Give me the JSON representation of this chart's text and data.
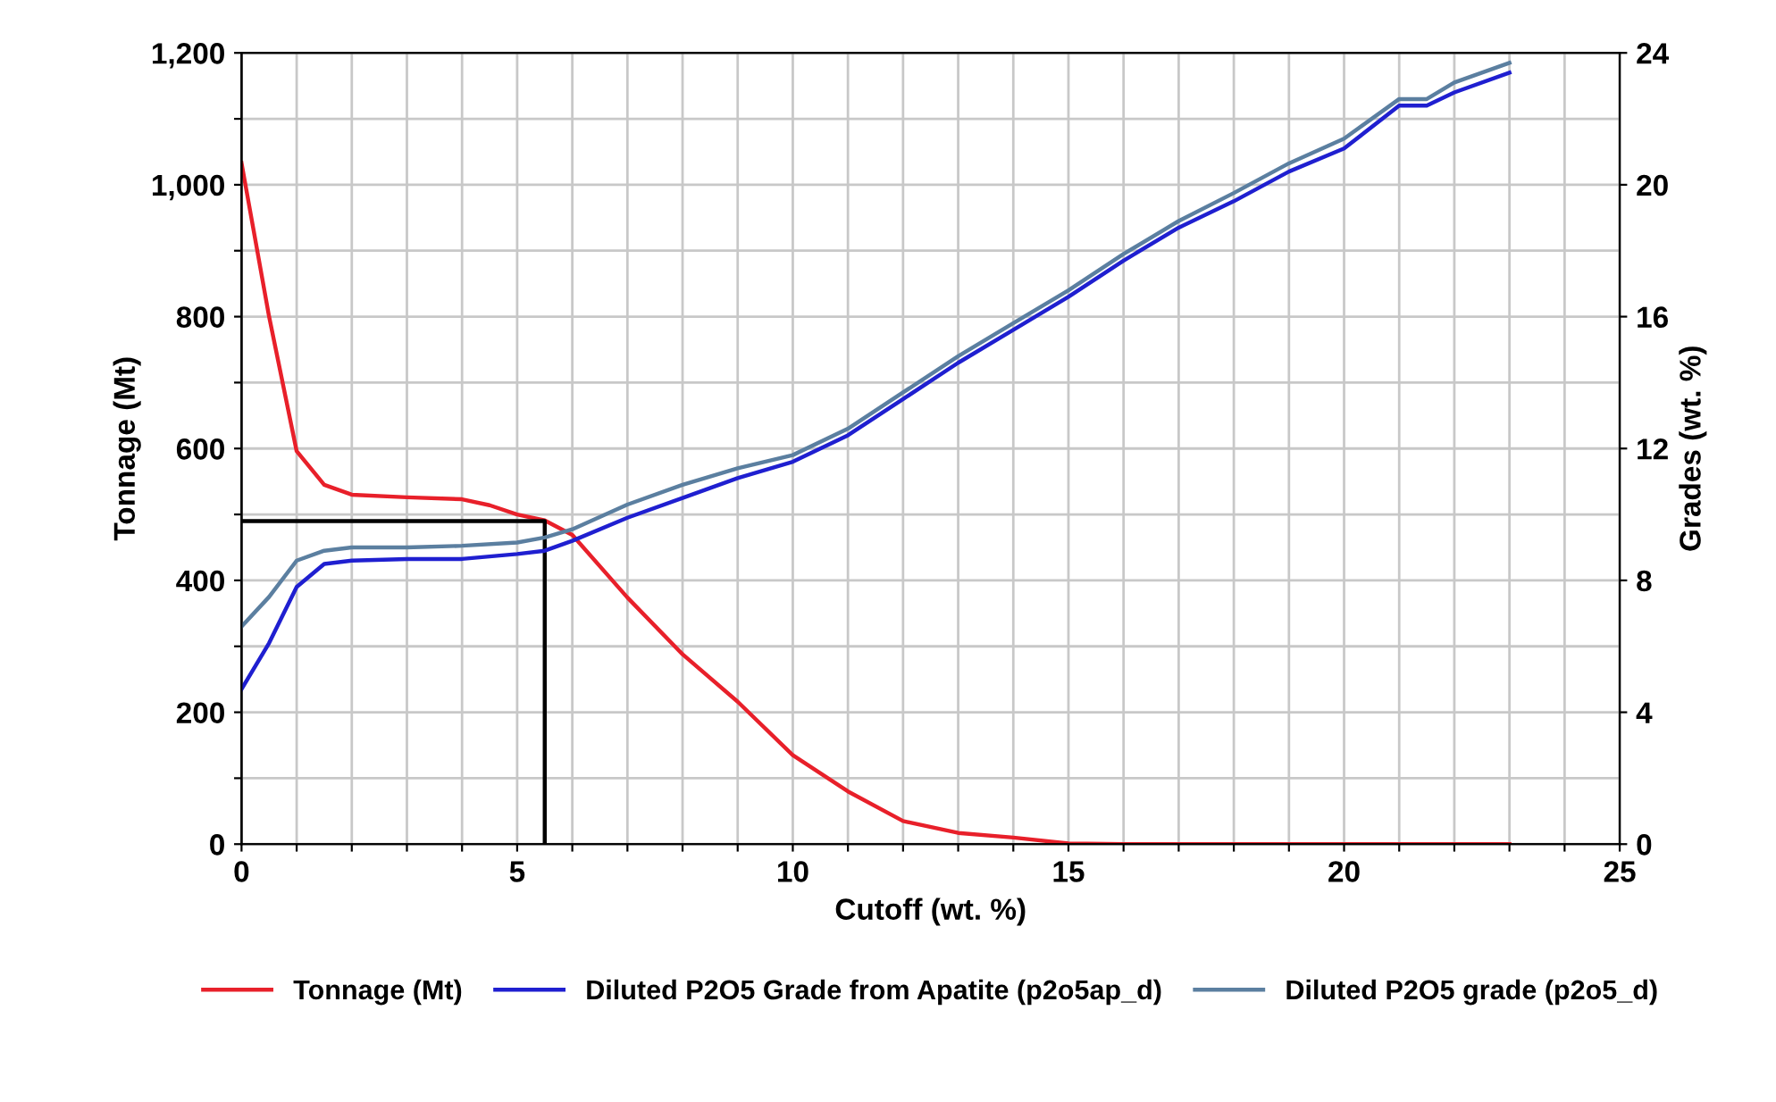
{
  "chart_data": {
    "type": "line",
    "xlabel": "Cutoff (wt. %)",
    "ylabel": "Tonnage (Mt)",
    "y2label": "Grades (wt. %)",
    "xlim": [
      0,
      25
    ],
    "ylim": [
      0,
      1200
    ],
    "y2lim": [
      0,
      24
    ],
    "xticks": [
      0,
      {
        "value": 1,
        "label": null
      },
      {
        "value": 2,
        "label": null
      },
      {
        "value": 3,
        "label": null
      },
      {
        "value": 4,
        "label": null
      },
      5,
      {
        "value": 6,
        "label": null
      },
      {
        "value": 7,
        "label": null
      },
      {
        "value": 8,
        "label": null
      },
      {
        "value": 9,
        "label": null
      },
      10,
      {
        "value": 11,
        "label": null
      },
      {
        "value": 12,
        "label": null
      },
      {
        "value": 13,
        "label": null
      },
      {
        "value": 14,
        "label": null
      },
      15,
      {
        "value": 16,
        "label": null
      },
      {
        "value": 17,
        "label": null
      },
      {
        "value": 18,
        "label": null
      },
      {
        "value": 19,
        "label": null
      },
      20,
      {
        "value": 21,
        "label": null
      },
      {
        "value": 22,
        "label": null
      },
      {
        "value": 23,
        "label": null
      },
      {
        "value": 24,
        "label": null
      },
      25
    ],
    "yticks": [
      {
        "value": 0,
        "label": "0"
      },
      {
        "value": 100,
        "label": null
      },
      {
        "value": 200,
        "label": "200"
      },
      {
        "value": 300,
        "label": null
      },
      {
        "value": 400,
        "label": "400"
      },
      {
        "value": 500,
        "label": null
      },
      {
        "value": 600,
        "label": "600"
      },
      {
        "value": 700,
        "label": null
      },
      {
        "value": 800,
        "label": "800"
      },
      {
        "value": 900,
        "label": null
      },
      {
        "value": 1000,
        "label": "1,000"
      },
      {
        "value": 1100,
        "label": null
      },
      {
        "value": 1200,
        "label": "1,200"
      }
    ],
    "y2ticks": [
      0,
      4,
      8,
      12,
      16,
      20,
      24
    ],
    "grid": true,
    "legend": "bottom",
    "marker": "none",
    "line_style": "solid",
    "series": [
      {
        "name": "Tonnage (Mt)",
        "color": "#e8202a",
        "x": [
          0,
          0.5,
          1,
          1.5,
          2,
          3,
          4,
          4.5,
          5,
          5.5,
          6,
          7,
          8,
          9,
          10,
          11,
          12,
          13,
          14,
          15,
          16,
          17,
          18,
          19,
          20,
          21,
          22,
          23
        ],
        "values": [
          1033,
          800,
          596,
          545,
          530,
          526,
          523,
          514,
          500,
          491,
          469,
          374,
          288,
          216,
          135,
          80,
          35,
          17,
          10,
          1,
          0,
          0,
          0,
          0,
          0,
          0,
          0,
          0
        ]
      },
      {
        "name": "Diluted P2O5 Grade from Apatite (p2o5ap_d)",
        "color": "#1f1fd0",
        "axis": "y2",
        "x": [
          0,
          0.5,
          1,
          1.5,
          2,
          3,
          4,
          5,
          5.5,
          6,
          7,
          8,
          9,
          10,
          11,
          12,
          13,
          14,
          15,
          16,
          17,
          18,
          19,
          20,
          21,
          21.5,
          22,
          23
        ],
        "values": [
          4.7,
          6.1,
          7.8,
          8.5,
          8.6,
          8.65,
          8.65,
          8.8,
          8.9,
          9.2,
          9.9,
          10.5,
          11.1,
          11.6,
          12.4,
          13.5,
          14.6,
          15.6,
          16.6,
          17.7,
          18.7,
          19.5,
          20.4,
          21.1,
          22.4,
          22.4,
          22.8,
          23.4
        ]
      },
      {
        "name": "Diluted P2O5 grade (p2o5_d)",
        "color": "#5b7fa0",
        "axis": "y2",
        "x": [
          0,
          0.5,
          1,
          1.5,
          2,
          3,
          4,
          5,
          5.5,
          6,
          7,
          8,
          9,
          10,
          11,
          12,
          13,
          14,
          15,
          16,
          17,
          18,
          19,
          20,
          21,
          21.5,
          22,
          23
        ],
        "values": [
          6.6,
          7.5,
          8.6,
          8.9,
          9.0,
          9.0,
          9.05,
          9.15,
          9.3,
          9.55,
          10.3,
          10.9,
          11.4,
          11.8,
          12.6,
          13.7,
          14.8,
          15.8,
          16.8,
          17.9,
          18.9,
          19.75,
          20.65,
          21.4,
          22.6,
          22.6,
          23.1,
          23.7
        ]
      },
      {
        "color": "#000000",
        "x": [
          0,
          5.5,
          5.5
        ],
        "values": [
          490,
          490,
          0
        ]
      }
    ]
  }
}
